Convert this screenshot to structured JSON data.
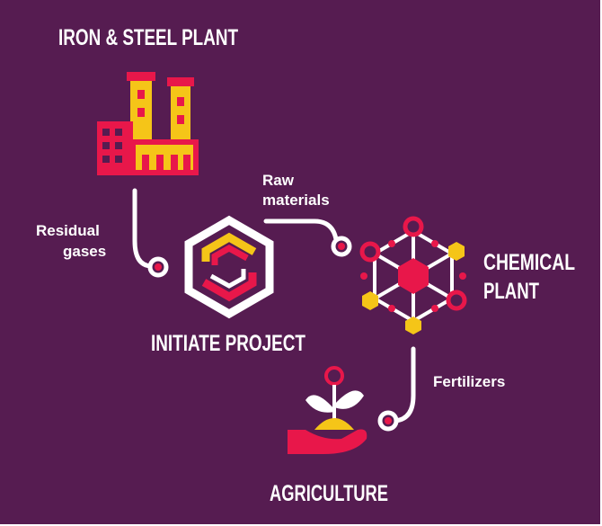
{
  "nodes": [
    {
      "label": [
        "IRON & STEEL PLANT"
      ]
    },
    {
      "label": [
        "INITIATE PROJECT"
      ]
    },
    {
      "label": [
        "CHEMICAL",
        "PLANT"
      ]
    },
    {
      "label": [
        "AGRICULTURE"
      ]
    }
  ],
  "edges": [
    {
      "label": [
        "Residual",
        "gases"
      ]
    },
    {
      "label": [
        "Raw",
        "materials"
      ]
    },
    {
      "label": [
        "Fertilizers"
      ]
    }
  ]
}
